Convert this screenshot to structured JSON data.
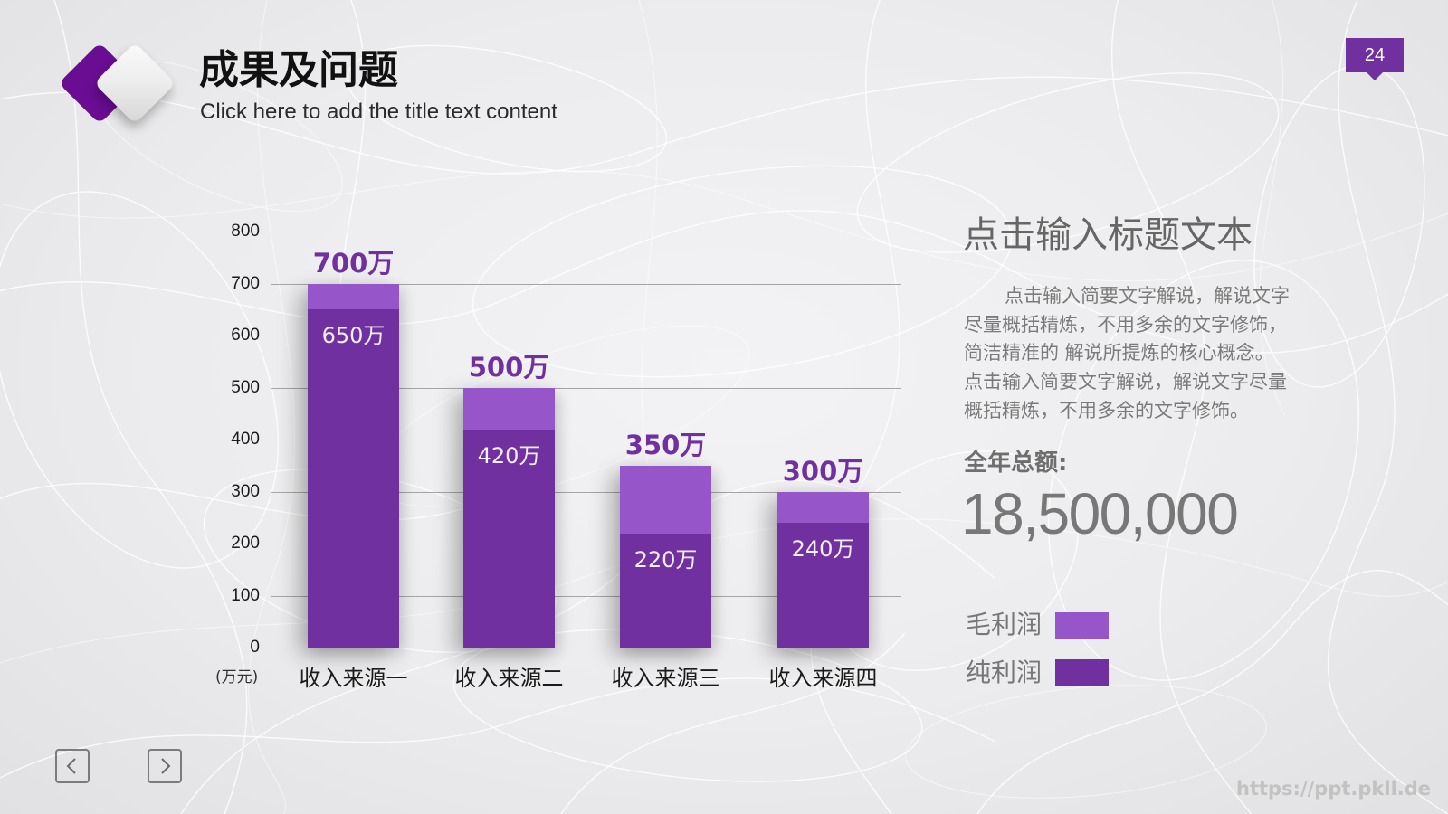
{
  "slide": {
    "title": "成果及问题",
    "subtitle": "Click here to add the title text content",
    "page_number": "24",
    "watermark": "https://ppt.pkll.de"
  },
  "theme": {
    "accent": "#7030A0",
    "accent_light": "#9655C8",
    "logo_purple": "#6A0D93",
    "text_grey": "#777777"
  },
  "info_panel": {
    "heading": "点击输入标题文本",
    "paragraph_lines": [
      "点击输入简要文字解说，解说文字",
      "尽量概括精炼，不用多余的文字修饰，",
      "简洁精准的 解说所提炼的核心概念。",
      "点击输入简要文字解说，解说文字尽量",
      "概括精炼，不用多余的文字修饰。"
    ],
    "total_label": "全年总额:",
    "total_value": "18,500,000"
  },
  "legend": {
    "items": [
      {
        "label": "毛利润",
        "color": "#9655C8"
      },
      {
        "label": "纯利润",
        "color": "#7030A0"
      }
    ]
  },
  "navigation": {
    "prev_icon": "chevron-left-icon",
    "next_icon": "chevron-right-icon"
  },
  "chart_data": {
    "type": "bar",
    "layout": "overlapped",
    "title": "",
    "xlabel": "",
    "ylabel": "(万元)",
    "ylim": [
      0,
      800
    ],
    "yticks": [
      800,
      700,
      600,
      500,
      400,
      300,
      200,
      100,
      0
    ],
    "grid": true,
    "legend_position": "right",
    "categories": [
      "收入来源一",
      "收入来源二",
      "收入来源三",
      "收入来源四"
    ],
    "series": [
      {
        "name": "毛利润",
        "values": [
          700,
          500,
          350,
          300
        ],
        "color": "#9655C8"
      },
      {
        "name": "纯利润",
        "values": [
          650,
          420,
          220,
          240
        ],
        "color": "#7030A0"
      }
    ],
    "data_labels": {
      "gross": [
        "700万",
        "500万",
        "350万",
        "300万"
      ],
      "net": [
        "650万",
        "420万",
        "220万",
        "240万"
      ]
    }
  }
}
